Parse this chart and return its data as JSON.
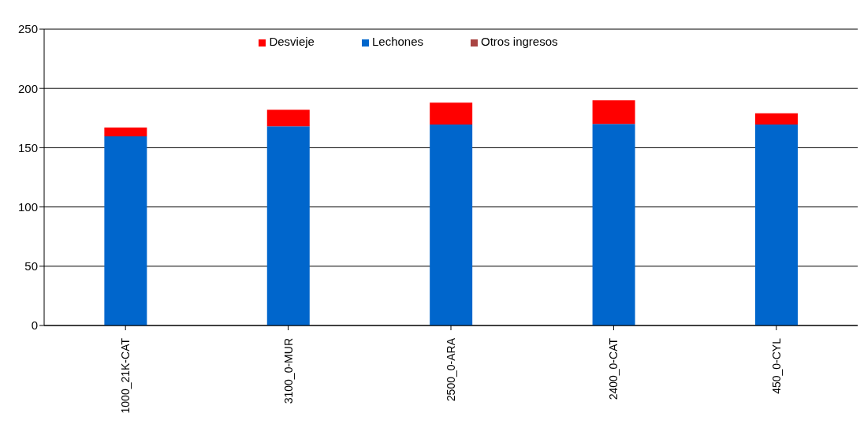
{
  "chart_data": {
    "type": "bar",
    "stacked": true,
    "categories": [
      "1000_21K-CAT",
      "3100_0-MUR",
      "2500_0-ARA",
      "2400_0-CAT",
      "450_0-CYL"
    ],
    "series": [
      {
        "name": "Lechones",
        "color": "#0066cc",
        "values": [
          159.5,
          168,
          169.5,
          170,
          169.5
        ]
      },
      {
        "name": "Desvieje",
        "color": "#ff0000",
        "values": [
          7.5,
          14,
          18.5,
          20,
          9.5
        ]
      },
      {
        "name": "Otros ingresos",
        "color": "#a94442",
        "values": [
          0,
          0,
          0,
          0,
          0
        ]
      }
    ],
    "ylim": [
      0,
      250
    ],
    "yticks": [
      0,
      50,
      100,
      150,
      200,
      250
    ],
    "grid": "y",
    "legend": "top"
  }
}
